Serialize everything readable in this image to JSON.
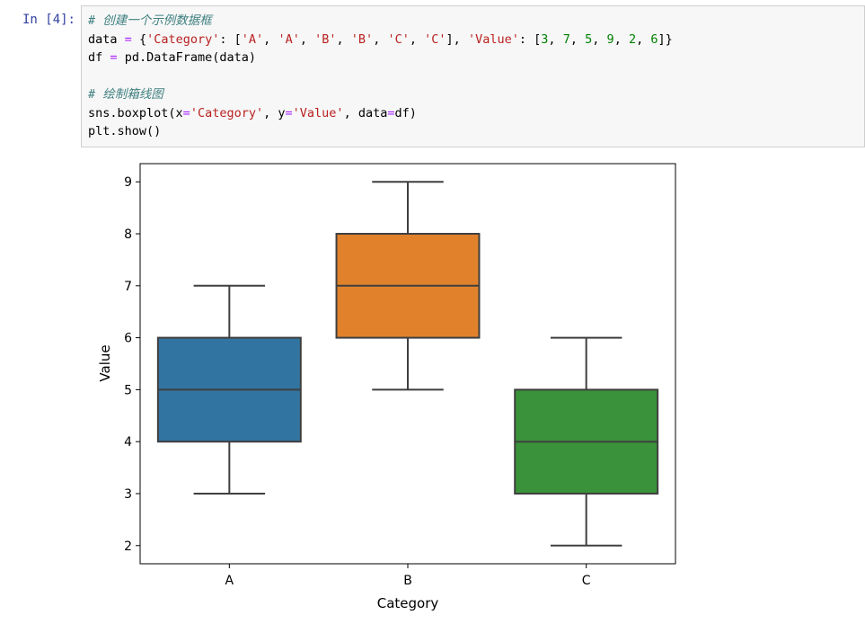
{
  "cell": {
    "prompt": "In  [4]:"
  },
  "code": {
    "comment1": "# 创建一个示例数据框",
    "comment2": "# 绘制箱线图",
    "tokens": {
      "data": "data",
      "eq": "=",
      "brace_open": "{",
      "brace_close": "}",
      "colon": ":",
      "comma": ",",
      "bracket_open": "[",
      "bracket_close": "]",
      "str_category": "'Category'",
      "str_value": "'Value'",
      "str_A": "'A'",
      "str_B": "'B'",
      "str_C": "'C'",
      "n3": "3",
      "n7": "7",
      "n5": "5",
      "n9": "9",
      "n2": "2",
      "n6": "6",
      "df_assign": "df",
      "pd_call": "pd.DataFrame(data)",
      "sns_call": "sns.boxplot(x",
      "y_kw": "y",
      "data_kw": "data",
      "df_arg": "df)",
      "plt_show": "plt.show()"
    }
  },
  "chart_data": {
    "type": "box",
    "xlabel": "Category",
    "ylabel": "Value",
    "categories": [
      "A",
      "B",
      "C"
    ],
    "ylim": [
      1.65,
      9.35
    ],
    "yticks": [
      2,
      3,
      4,
      5,
      6,
      7,
      8,
      9
    ],
    "series": [
      {
        "category": "A",
        "min": 3,
        "q1": 4,
        "median": 5,
        "q3": 6,
        "max": 7,
        "color": "#3274a1"
      },
      {
        "category": "B",
        "min": 5,
        "q1": 6,
        "median": 7,
        "q3": 8,
        "max": 9,
        "color": "#e1812c"
      },
      {
        "category": "C",
        "min": 2,
        "q1": 3,
        "median": 4,
        "q3": 5,
        "max": 6,
        "color": "#3a923a"
      }
    ]
  }
}
